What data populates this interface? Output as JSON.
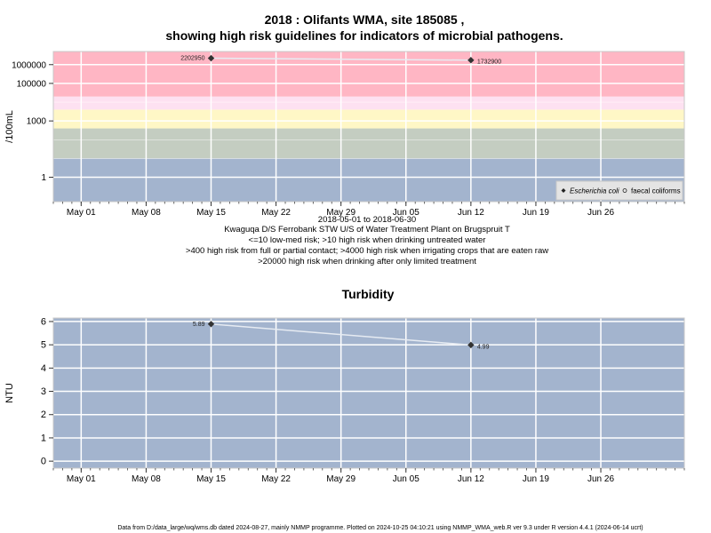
{
  "chart_data": [
    {
      "type": "scatter",
      "title_line1": "2018 : Olifants WMA, site 185085 ,",
      "title_line2": "showing high risk guidelines for indicators of microbial pathogens.",
      "ylabel": "/100mL",
      "yscale": "log",
      "ylim": [
        0.05,
        5000000
      ],
      "yticks": [
        1,
        1000,
        100000,
        1000000
      ],
      "ytick_labels": [
        "1",
        "1000",
        "100000",
        "1000000"
      ],
      "xlim": [
        "2018-04-28",
        "2018-07-05"
      ],
      "xticks": [
        "2018-05-01",
        "2018-05-08",
        "2018-05-15",
        "2018-05-22",
        "2018-05-29",
        "2018-06-05",
        "2018-06-12",
        "2018-06-19",
        "2018-06-26"
      ],
      "xtick_labels": [
        "May 01",
        "May 08",
        "May 15",
        "May 22",
        "May 29",
        "Jun 05",
        "Jun 12",
        "Jun 19",
        "Jun 26"
      ],
      "bands": [
        {
          "from": 0.05,
          "to": 10,
          "color": "#a3b4ce"
        },
        {
          "from": 10,
          "to": 400,
          "color": "#c4cdc1"
        },
        {
          "from": 400,
          "to": 4000,
          "color": "#fff7c6"
        },
        {
          "from": 4000,
          "to": 20000,
          "color": "#fde1f1"
        },
        {
          "from": 20000,
          "to": 5000000,
          "color": "#ffb6c4"
        }
      ],
      "series": [
        {
          "name": "Escherichia coli",
          "marker": "filled-diamond",
          "color": "#333333",
          "x": [
            "2018-05-15",
            "2018-06-12"
          ],
          "y": [
            2202950,
            1732900
          ],
          "labels": [
            "2202950",
            "1732900"
          ]
        },
        {
          "name": "faecal coliforms",
          "marker": "open-circle",
          "color": "#333333",
          "x": [],
          "y": [],
          "labels": []
        }
      ],
      "legend": "bottom-right",
      "grid": true,
      "subtitle_lines": [
        "2018-05-01 to 2018-06-30",
        "Kwaguqa D/S Ferrobank STW U/S of Water Treatment Plant on Brugspruit T",
        "<=10 low-med risk; >10 high risk when drinking untreated water",
        ">400 high risk from full or partial contact; >4000 high risk when irrigating crops that are eaten raw",
        ">20000 high risk when drinking after only limited treatment"
      ]
    },
    {
      "type": "line",
      "title": "Turbidity",
      "ylabel": "NTU",
      "ylim": [
        -0.3,
        6.15
      ],
      "yticks": [
        0,
        1,
        2,
        3,
        4,
        5,
        6
      ],
      "ytick_labels": [
        "0",
        "1",
        "2",
        "3",
        "4",
        "5",
        "6"
      ],
      "xlim": [
        "2018-04-28",
        "2018-07-05"
      ],
      "xticks": [
        "2018-05-01",
        "2018-05-08",
        "2018-05-15",
        "2018-05-22",
        "2018-05-29",
        "2018-06-05",
        "2018-06-12",
        "2018-06-19",
        "2018-06-26"
      ],
      "xtick_labels": [
        "May 01",
        "May 08",
        "May 15",
        "May 22",
        "May 29",
        "Jun 05",
        "Jun 12",
        "Jun 19",
        "Jun 26"
      ],
      "background_color": "#a3b4ce",
      "series": [
        {
          "name": "",
          "color": "#333333",
          "x": [
            "2018-05-15",
            "2018-06-12"
          ],
          "y": [
            5.89,
            4.99
          ],
          "labels": [
            "5.89",
            "4.99"
          ]
        }
      ],
      "grid": true
    }
  ],
  "footer": "Data from D:/data_large/wq/wms.db dated 2024-08-27, mainly NMMP programme. Plotted on 2024-10-25 04:10:21 using NMMP_WMA_web.R ver 9.3 under R version 4.4.1 (2024-06-14 ucrt)"
}
